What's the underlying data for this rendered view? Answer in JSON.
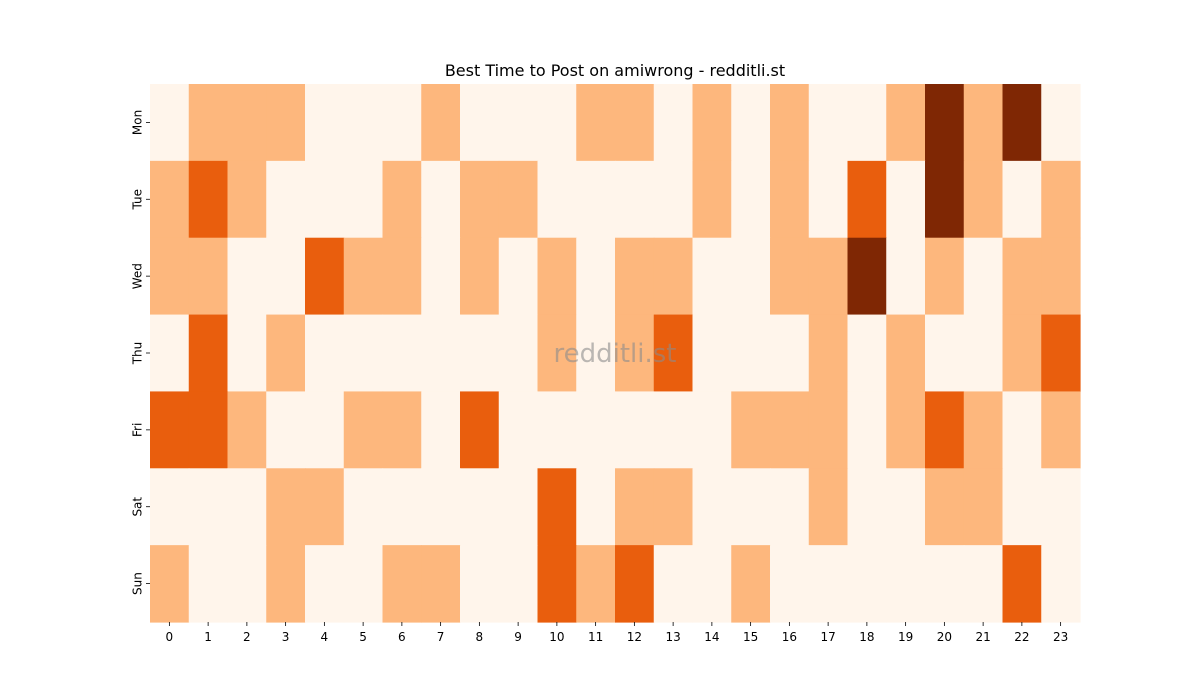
{
  "chart_data": {
    "type": "heatmap",
    "title": "Best Time to Post on amiwrong - redditli.st",
    "xlabel": "",
    "ylabel": "",
    "x_categories": [
      "0",
      "1",
      "2",
      "3",
      "4",
      "5",
      "6",
      "7",
      "8",
      "9",
      "10",
      "11",
      "12",
      "13",
      "14",
      "15",
      "16",
      "17",
      "18",
      "19",
      "20",
      "21",
      "22",
      "23"
    ],
    "y_categories": [
      "Mon",
      "Tue",
      "Wed",
      "Thu",
      "Fri",
      "Sat",
      "Sun"
    ],
    "values": [
      [
        0,
        1,
        1,
        1,
        0,
        0,
        0,
        1,
        0,
        0,
        0,
        1,
        1,
        0,
        1,
        0,
        1,
        0,
        0,
        1,
        3,
        1,
        3,
        0
      ],
      [
        1,
        2,
        1,
        0,
        0,
        0,
        1,
        0,
        1,
        1,
        0,
        0,
        0,
        0,
        1,
        0,
        1,
        0,
        2,
        0,
        3,
        1,
        0,
        1
      ],
      [
        1,
        1,
        0,
        0,
        2,
        1,
        1,
        0,
        1,
        0,
        1,
        0,
        1,
        1,
        0,
        0,
        1,
        1,
        3,
        0,
        1,
        0,
        1,
        1
      ],
      [
        0,
        2,
        0,
        1,
        0,
        0,
        0,
        0,
        0,
        0,
        1,
        0,
        1,
        2,
        0,
        0,
        0,
        1,
        0,
        1,
        0,
        0,
        1,
        2
      ],
      [
        2,
        2,
        1,
        0,
        0,
        1,
        1,
        0,
        2,
        0,
        0,
        0,
        0,
        0,
        0,
        1,
        1,
        1,
        0,
        1,
        2,
        1,
        0,
        1
      ],
      [
        0,
        0,
        0,
        1,
        1,
        0,
        0,
        0,
        0,
        0,
        2,
        0,
        1,
        1,
        0,
        0,
        0,
        1,
        0,
        0,
        1,
        1,
        0,
        0
      ],
      [
        1,
        0,
        0,
        1,
        0,
        0,
        1,
        1,
        0,
        0,
        2,
        1,
        2,
        0,
        0,
        1,
        0,
        0,
        0,
        0,
        0,
        0,
        2,
        0
      ]
    ],
    "color_scale": [
      "#fff5eb",
      "#fdb77d",
      "#e95e0d",
      "#7f2704"
    ],
    "colorbar": false,
    "grid": false,
    "watermark": "redditli.st"
  }
}
